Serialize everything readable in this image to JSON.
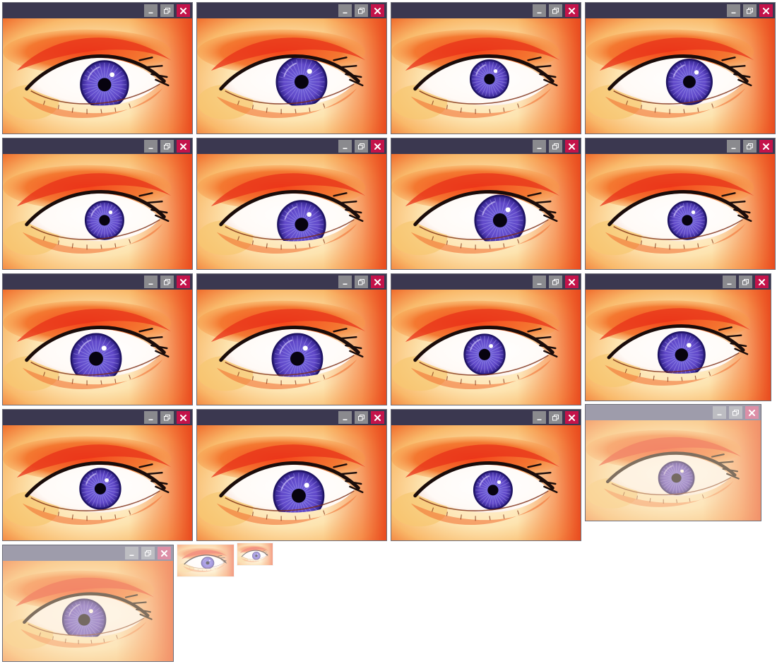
{
  "window_title_empty": "",
  "windows": [
    {
      "iris_dx": 0,
      "iris_dy": 0,
      "iris_scale": 1.0,
      "state": "normal"
    },
    {
      "iris_dx": 4,
      "iris_dy": -4,
      "iris_scale": 1.05,
      "state": "normal"
    },
    {
      "iris_dx": -5,
      "iris_dy": -8,
      "iris_scale": 0.8,
      "state": "normal"
    },
    {
      "iris_dx": 3,
      "iris_dy": -4,
      "iris_scale": 0.95,
      "state": "normal"
    },
    {
      "iris_dx": 0,
      "iris_dy": 0,
      "iris_scale": 0.8,
      "state": "normal"
    },
    {
      "iris_dx": 4,
      "iris_dy": 6,
      "iris_scale": 1.0,
      "state": "normal"
    },
    {
      "iris_dx": 10,
      "iris_dy": 0,
      "iris_scale": 1.05,
      "state": "normal"
    },
    {
      "iris_dx": 0,
      "iris_dy": 0,
      "iris_scale": 0.8,
      "state": "normal"
    },
    {
      "iris_dx": -12,
      "iris_dy": 4,
      "iris_scale": 1.05,
      "state": "normal"
    },
    {
      "iris_dx": -2,
      "iris_dy": 4,
      "iris_scale": 1.05,
      "state": "normal"
    },
    {
      "iris_dx": -12,
      "iris_dy": -2,
      "iris_scale": 0.85,
      "state": "normal"
    },
    {
      "iris_dx": -5,
      "iris_dy": 2,
      "iris_scale": 1.0,
      "state": "normal"
    },
    {
      "iris_dx": -6,
      "iris_dy": -4,
      "iris_scale": 0.85,
      "state": "normal"
    },
    {
      "iris_dx": 0,
      "iris_dy": 6,
      "iris_scale": 1.05,
      "state": "normal"
    },
    {
      "iris_dx": 0,
      "iris_dy": -2,
      "iris_scale": 0.8,
      "state": "normal"
    },
    {
      "iris_dx": -5,
      "iris_dy": 0,
      "iris_scale": 0.8,
      "state": "faded"
    },
    {
      "iris_dx": -16,
      "iris_dy": 2,
      "iris_scale": 1.0,
      "state": "faded"
    }
  ],
  "thumbnails": [
    {
      "state": "faded"
    },
    {
      "state": "faded"
    }
  ],
  "colors": {
    "titlebar": "#3b3850",
    "button_gray": "#8a8a8e",
    "close_red": "#c4134a",
    "iris": "#5a45c2",
    "skin_warm": "#f05a1e"
  },
  "icons": [
    "minimize-icon",
    "restore-icon",
    "close-icon"
  ]
}
